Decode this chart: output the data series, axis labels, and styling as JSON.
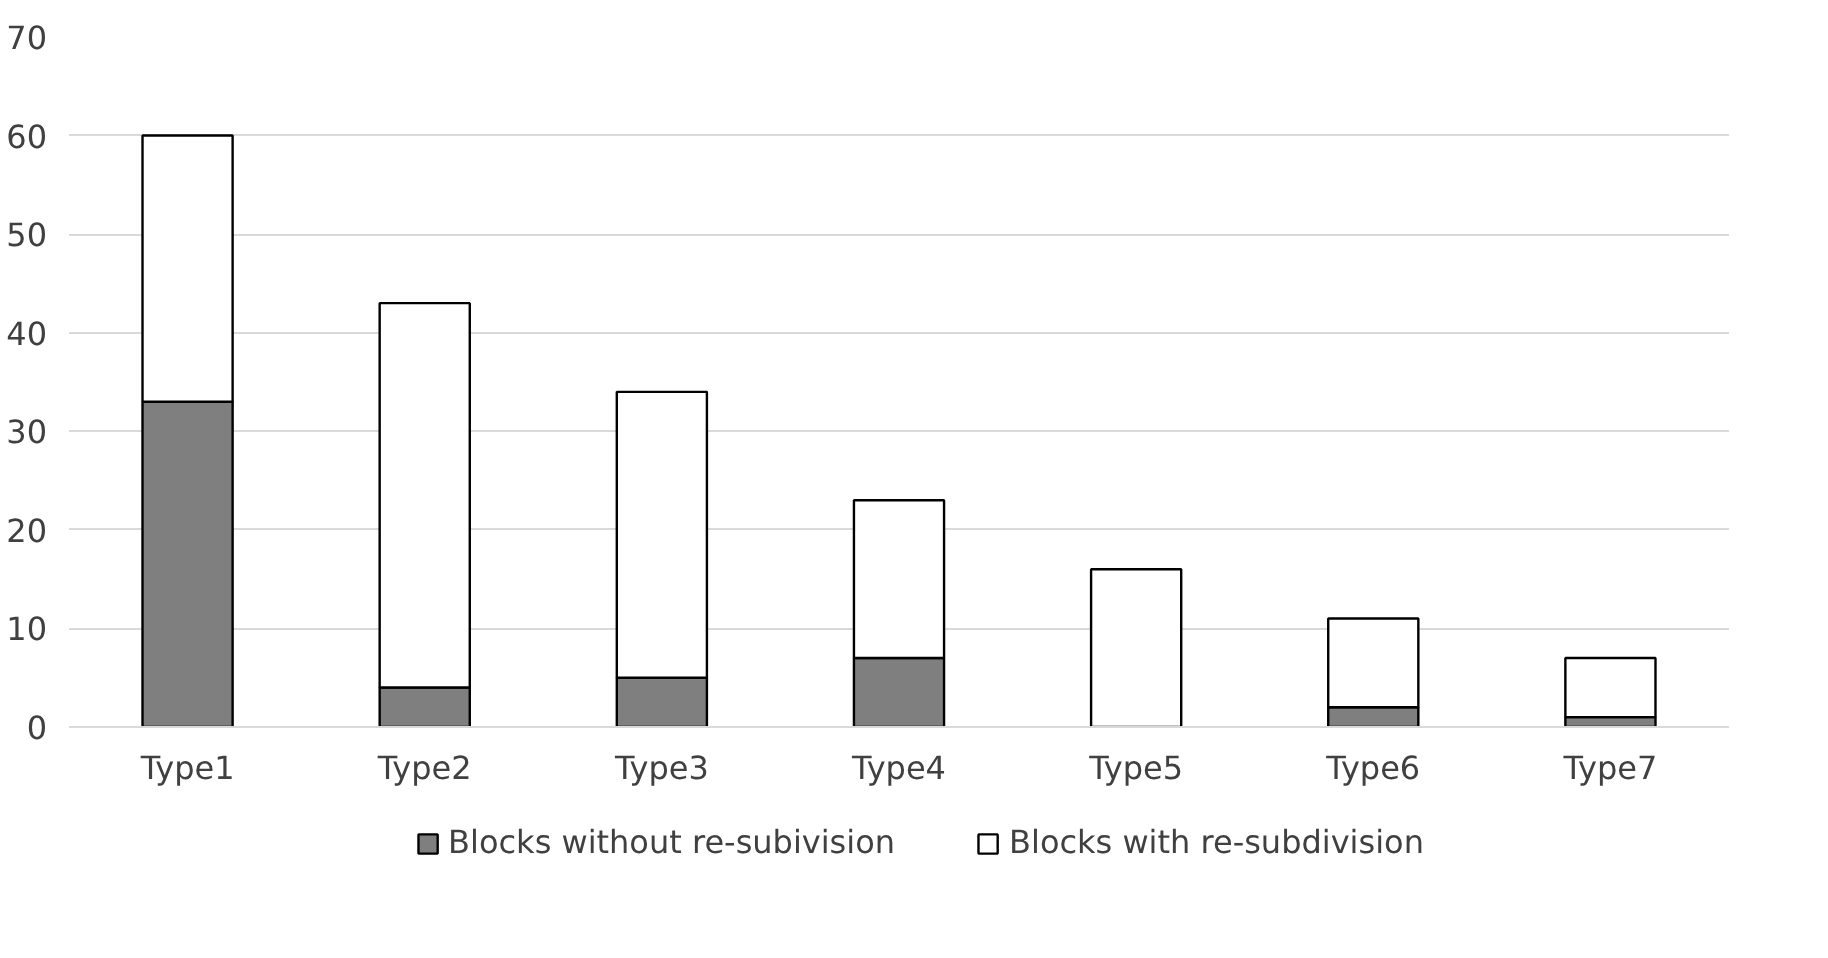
{
  "chart_data": {
    "type": "bar",
    "stacked": true,
    "categories": [
      "Type1",
      "Type2",
      "Type3",
      "Type4",
      "Type5",
      "Type6",
      "Type7"
    ],
    "series": [
      {
        "name": "Blocks without re-subivision",
        "color": "#7f7f7f",
        "values": [
          33,
          4,
          5,
          7,
          0,
          2,
          1
        ]
      },
      {
        "name": "Blocks with re-subdivision",
        "color": "#ffffff",
        "values": [
          27,
          39,
          29,
          16,
          16,
          9,
          6
        ]
      }
    ],
    "ylim": [
      0,
      70
    ],
    "yticks": [
      0,
      10,
      20,
      30,
      40,
      50,
      60,
      70
    ],
    "grid": "y",
    "legend": "bottom"
  }
}
